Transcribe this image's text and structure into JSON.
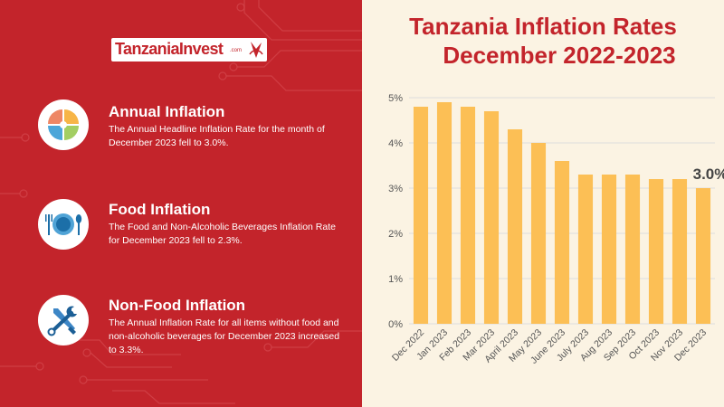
{
  "brand": {
    "logo_text": "TanzaniaInvest",
    "logo_suffix": ".com"
  },
  "colors": {
    "primary_red": "#c3242b",
    "bar": "#fcbf55",
    "panel_cream": "#fbf3e3",
    "grid": "#dcdcdc",
    "axis_text": "#555555"
  },
  "sections": [
    {
      "icon": "pie-chart-icon",
      "title": "Annual Inflation",
      "text": "The Annual Headline Inflation Rate for the month of December 2023 fell to 3.0%."
    },
    {
      "icon": "plate-cutlery-icon",
      "title": "Food Inflation",
      "text": "The Food and Non-Alcoholic Beverages Inflation Rate for December 2023 fell to 2.3%."
    },
    {
      "icon": "tools-icon",
      "title": "Non-Food Inflation",
      "text": "The Annual Inflation Rate for all items without food and non-alcoholic beverages for December 2023 increased to 3.3%."
    }
  ],
  "chart_title": {
    "line1": "Tanzania Inflation Rates",
    "line2": "December 2022-2023"
  },
  "chart_data": {
    "type": "bar",
    "title": "Tanzania Inflation Rates December 2022-2023",
    "categories": [
      "Dec 2022",
      "Jan 2023",
      "Feb 2023",
      "Mar 2023",
      "April 2023",
      "May 2023",
      "June 2023",
      "July 2023",
      "Aug 2023",
      "Sep 2023",
      "Oct 2023",
      "Nov 2023",
      "Dec 2023"
    ],
    "values": [
      4.8,
      4.9,
      4.8,
      4.7,
      4.3,
      4.0,
      3.6,
      3.3,
      3.3,
      3.3,
      3.2,
      3.2,
      3.0
    ],
    "ylim": [
      0,
      5
    ],
    "yticks": [
      0,
      1,
      2,
      3,
      4,
      5
    ],
    "ytick_labels": [
      "0%",
      "1%",
      "2%",
      "3%",
      "4%",
      "5%"
    ],
    "xlabel": "",
    "ylabel": "",
    "grid": true,
    "annotation": {
      "category": "Dec 2023",
      "label": "3.0%"
    }
  }
}
